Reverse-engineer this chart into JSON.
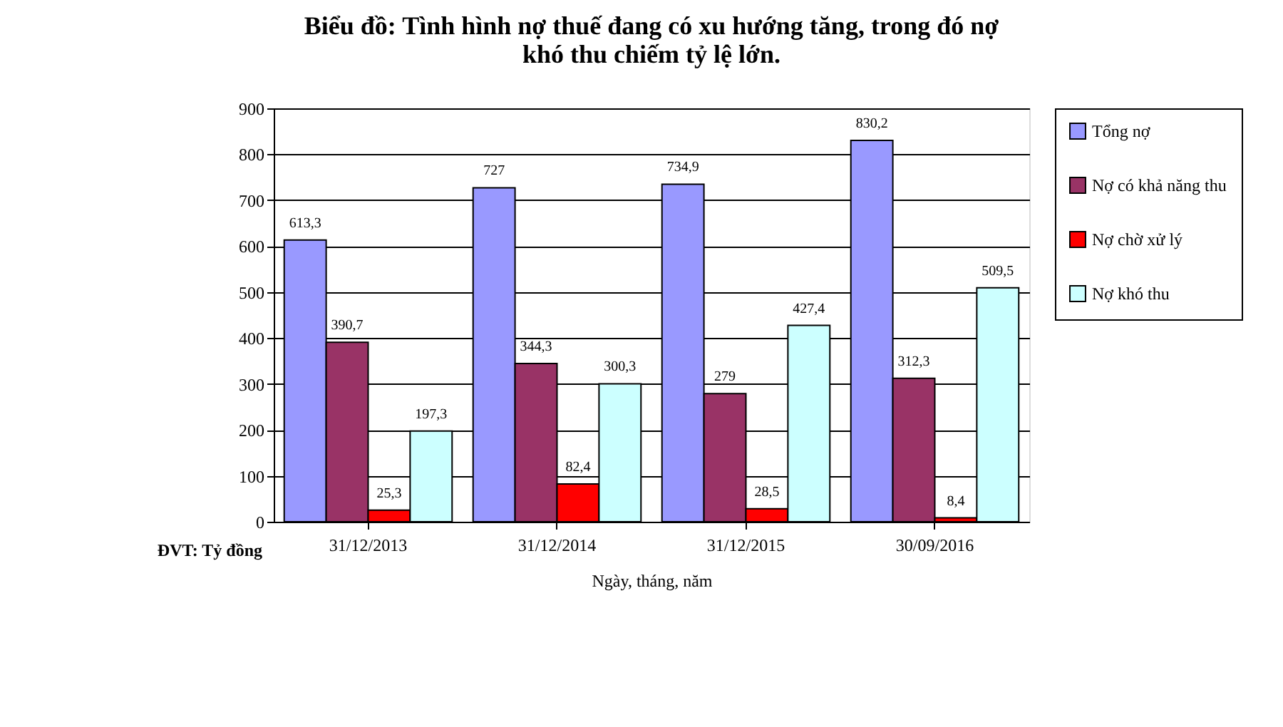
{
  "chart_data": {
    "type": "bar",
    "title": "Biểu đồ: Tình hình nợ thuế đang có xu hướng tăng, trong đó nợ\nkhó thu chiếm tỷ lệ lớn.",
    "xlabel": "Ngày, tháng, năm",
    "annotations": [
      "ĐVT: Tỷ đồng"
    ],
    "categories": [
      "31/12/2013",
      "31/12/2014",
      "31/12/2015",
      "30/09/2016"
    ],
    "series": [
      {
        "name": "Tổng nợ",
        "color": "#9999ff",
        "values": [
          613.3,
          727,
          734.9,
          830.2
        ],
        "value_labels": [
          "613,3",
          "727",
          "734,9",
          "830,2"
        ]
      },
      {
        "name": "Nợ có khả năng thu",
        "color": "#993366",
        "values": [
          390.7,
          344.3,
          279,
          312.3
        ],
        "value_labels": [
          "390,7",
          "344,3",
          "279",
          "312,3"
        ]
      },
      {
        "name": "Nợ chờ xử lý",
        "color": "#ff0000",
        "values": [
          25.3,
          82.4,
          28.5,
          8.4
        ],
        "value_labels": [
          "25,3",
          "82,4",
          "28,5",
          "8,4"
        ]
      },
      {
        "name": "Nợ khó thu",
        "color": "#ccffff",
        "values": [
          197.3,
          300.3,
          427.4,
          509.5
        ],
        "value_labels": [
          "197,3",
          "300,3",
          "427,4",
          "509,5"
        ]
      }
    ],
    "ylim": [
      0,
      900
    ],
    "yticks": [
      0,
      100,
      200,
      300,
      400,
      500,
      600,
      700,
      800,
      900
    ],
    "grid": "y",
    "legend": "right"
  }
}
